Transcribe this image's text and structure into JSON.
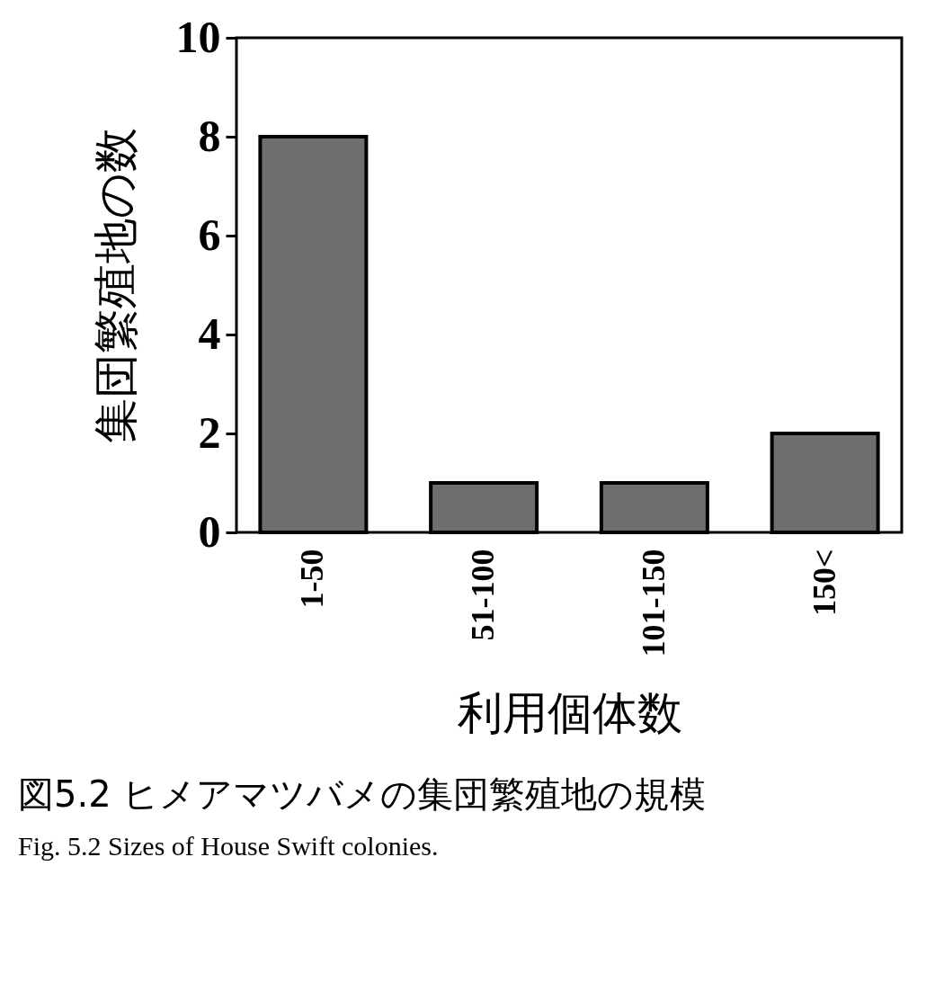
{
  "chart_data": {
    "type": "bar",
    "title": "図5.2 ヒメアマツバメの集団繁殖地の規模",
    "subtitle": "Fig. 5.2  Sizes of House Swift colonies.",
    "xlabel": "利用個体数",
    "ylabel": "集団繁殖地の数",
    "categories": [
      "1-50",
      "51-100",
      "101-150",
      "150<"
    ],
    "values": [
      8,
      1,
      1,
      2
    ],
    "color": "#6e6e6e",
    "ylim": [
      0,
      10
    ],
    "yticks": [
      0,
      2,
      4,
      6,
      8,
      10
    ],
    "grid": false
  }
}
